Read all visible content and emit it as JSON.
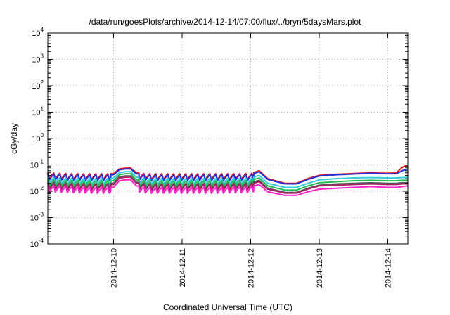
{
  "chart_data": {
    "type": "line",
    "title": "/data/run/goesPlots/archive/2014-12-14/07:00/flux/../bryn/5daysMars.plot",
    "xlabel": "Coordinated Universal Time (UTC)",
    "ylabel": "cGy/day",
    "y_scale": "log",
    "ylim": [
      0.0001,
      10000
    ],
    "y_ticks": [
      {
        "base": "10",
        "exp": "4",
        "value": 10000
      },
      {
        "base": "10",
        "exp": "3",
        "value": 1000
      },
      {
        "base": "10",
        "exp": "2",
        "value": 100
      },
      {
        "base": "10",
        "exp": "1",
        "value": 10
      },
      {
        "base": "10",
        "exp": "0",
        "value": 1
      },
      {
        "base": "10",
        "exp": "-1",
        "value": 0.1
      },
      {
        "base": "10",
        "exp": "-2",
        "value": 0.01
      },
      {
        "base": "10",
        "exp": "-3",
        "value": 0.001
      },
      {
        "base": "10",
        "exp": "-4",
        "value": 0.0001
      }
    ],
    "xlim": [
      "2014-12-09T01:00",
      "2014-12-14T07:00"
    ],
    "x_ticks": [
      {
        "label": "2014-12-10",
        "value": "2014-12-10T00:00"
      },
      {
        "label": "2014-12-11",
        "value": "2014-12-11T00:00"
      },
      {
        "label": "2014-12-12",
        "value": "2014-12-12T00:00"
      },
      {
        "label": "2014-12-13",
        "value": "2014-12-13T00:00"
      },
      {
        "label": "2014-12-14",
        "value": "2014-12-14T00:00"
      }
    ],
    "grid": true,
    "series": [
      {
        "color": "#ee1111",
        "width": 2,
        "x": [
          "2014-12-09T01:00",
          "2014-12-09T08:00",
          "2014-12-09T16:00",
          "2014-12-10T00:00",
          "2014-12-10T02:00",
          "2014-12-10T04:00",
          "2014-12-10T06:00",
          "2014-12-10T08:00",
          "2014-12-10T12:00",
          "2014-12-11T00:00",
          "2014-12-11T12:00",
          "2014-12-12T00:00",
          "2014-12-12T03:00",
          "2014-12-12T06:00",
          "2014-12-12T12:00",
          "2014-12-12T16:00",
          "2014-12-12T20:00",
          "2014-12-13T00:00",
          "2014-12-13T06:00",
          "2014-12-13T12:00",
          "2014-12-13T18:00",
          "2014-12-14T00:00",
          "2014-12-14T03:00",
          "2014-12-14T05:00",
          "2014-12-14T07:00"
        ],
        "y": [
          0.05,
          0.047,
          0.046,
          0.046,
          0.07,
          0.075,
          0.076,
          0.05,
          0.046,
          0.046,
          0.046,
          0.047,
          0.06,
          0.03,
          0.02,
          0.02,
          0.03,
          0.04,
          0.044,
          0.047,
          0.05,
          0.048,
          0.05,
          0.08,
          0.1
        ]
      },
      {
        "color": "#2233dd",
        "width": 2,
        "x": [
          "2014-12-09T01:00",
          "2014-12-09T08:00",
          "2014-12-09T16:00",
          "2014-12-10T00:00",
          "2014-12-10T02:00",
          "2014-12-10T04:00",
          "2014-12-10T06:00",
          "2014-12-10T08:00",
          "2014-12-10T12:00",
          "2014-12-11T00:00",
          "2014-12-11T12:00",
          "2014-12-12T00:00",
          "2014-12-12T03:00",
          "2014-12-12T06:00",
          "2014-12-12T12:00",
          "2014-12-12T16:00",
          "2014-12-12T20:00",
          "2014-12-13T00:00",
          "2014-12-13T06:00",
          "2014-12-13T12:00",
          "2014-12-13T18:00",
          "2014-12-14T00:00",
          "2014-12-14T03:00",
          "2014-12-14T05:00",
          "2014-12-14T07:00"
        ],
        "y": [
          0.045,
          0.043,
          0.042,
          0.042,
          0.065,
          0.07,
          0.07,
          0.046,
          0.042,
          0.042,
          0.042,
          0.043,
          0.055,
          0.028,
          0.019,
          0.019,
          0.028,
          0.038,
          0.042,
          0.045,
          0.048,
          0.046,
          0.046,
          0.06,
          0.07
        ]
      },
      {
        "color": "#33ccdd",
        "width": 2,
        "x": [
          "2014-12-09T01:00",
          "2014-12-09T08:00",
          "2014-12-09T16:00",
          "2014-12-10T00:00",
          "2014-12-10T02:00",
          "2014-12-10T04:00",
          "2014-12-10T06:00",
          "2014-12-10T08:00",
          "2014-12-10T12:00",
          "2014-12-11T00:00",
          "2014-12-11T12:00",
          "2014-12-12T00:00",
          "2014-12-12T03:00",
          "2014-12-12T06:00",
          "2014-12-12T12:00",
          "2014-12-12T16:00",
          "2014-12-12T20:00",
          "2014-12-13T00:00",
          "2014-12-13T06:00",
          "2014-12-13T12:00",
          "2014-12-13T18:00",
          "2014-12-14T00:00",
          "2014-12-14T03:00",
          "2014-12-14T05:00",
          "2014-12-14T07:00"
        ],
        "y": [
          0.034,
          0.032,
          0.031,
          0.031,
          0.05,
          0.055,
          0.055,
          0.034,
          0.031,
          0.031,
          0.031,
          0.032,
          0.04,
          0.02,
          0.014,
          0.014,
          0.02,
          0.027,
          0.03,
          0.032,
          0.033,
          0.032,
          0.032,
          0.033,
          0.034
        ]
      },
      {
        "color": "#22bb55",
        "width": 2,
        "x": [
          "2014-12-09T01:00",
          "2014-12-09T08:00",
          "2014-12-09T16:00",
          "2014-12-10T00:00",
          "2014-12-10T02:00",
          "2014-12-10T04:00",
          "2014-12-10T06:00",
          "2014-12-10T08:00",
          "2014-12-10T12:00",
          "2014-12-11T00:00",
          "2014-12-11T12:00",
          "2014-12-12T00:00",
          "2014-12-12T03:00",
          "2014-12-12T06:00",
          "2014-12-12T12:00",
          "2014-12-12T16:00",
          "2014-12-12T20:00",
          "2014-12-13T00:00",
          "2014-12-13T06:00",
          "2014-12-13T12:00",
          "2014-12-13T18:00",
          "2014-12-14T00:00",
          "2014-12-14T03:00",
          "2014-12-14T05:00",
          "2014-12-14T07:00"
        ],
        "y": [
          0.027,
          0.026,
          0.025,
          0.025,
          0.042,
          0.046,
          0.046,
          0.027,
          0.025,
          0.025,
          0.025,
          0.026,
          0.032,
          0.016,
          0.011,
          0.011,
          0.016,
          0.021,
          0.023,
          0.025,
          0.026,
          0.025,
          0.025,
          0.026,
          0.026
        ]
      },
      {
        "color": "#555555",
        "width": 2,
        "x": [
          "2014-12-09T01:00",
          "2014-12-09T08:00",
          "2014-12-09T16:00",
          "2014-12-10T00:00",
          "2014-12-10T02:00",
          "2014-12-10T04:00",
          "2014-12-10T06:00",
          "2014-12-10T08:00",
          "2014-12-10T12:00",
          "2014-12-11T00:00",
          "2014-12-11T12:00",
          "2014-12-12T00:00",
          "2014-12-12T03:00",
          "2014-12-12T06:00",
          "2014-12-12T12:00",
          "2014-12-12T16:00",
          "2014-12-12T20:00",
          "2014-12-13T00:00",
          "2014-12-13T06:00",
          "2014-12-13T12:00",
          "2014-12-13T18:00",
          "2014-12-14T00:00",
          "2014-12-14T03:00",
          "2014-12-14T05:00",
          "2014-12-14T07:00"
        ],
        "y": [
          0.022,
          0.021,
          0.02,
          0.02,
          0.035,
          0.038,
          0.038,
          0.022,
          0.02,
          0.02,
          0.02,
          0.021,
          0.026,
          0.013,
          0.009,
          0.009,
          0.013,
          0.017,
          0.019,
          0.02,
          0.021,
          0.02,
          0.02,
          0.021,
          0.021
        ]
      },
      {
        "color": "#aa2266",
        "width": 2,
        "x": [
          "2014-12-09T01:00",
          "2014-12-09T08:00",
          "2014-12-09T16:00",
          "2014-12-10T00:00",
          "2014-12-10T02:00",
          "2014-12-10T04:00",
          "2014-12-10T06:00",
          "2014-12-10T08:00",
          "2014-12-10T12:00",
          "2014-12-11T00:00",
          "2014-12-11T12:00",
          "2014-12-12T00:00",
          "2014-12-12T03:00",
          "2014-12-12T06:00",
          "2014-12-12T12:00",
          "2014-12-12T16:00",
          "2014-12-12T20:00",
          "2014-12-13T00:00",
          "2014-12-13T06:00",
          "2014-12-13T12:00",
          "2014-12-13T18:00",
          "2014-12-14T00:00",
          "2014-12-14T03:00",
          "2014-12-14T05:00",
          "2014-12-14T07:00"
        ],
        "y": [
          0.02,
          0.019,
          0.018,
          0.018,
          0.031,
          0.034,
          0.034,
          0.02,
          0.018,
          0.018,
          0.018,
          0.019,
          0.023,
          0.012,
          0.0085,
          0.0085,
          0.012,
          0.016,
          0.017,
          0.018,
          0.019,
          0.018,
          0.018,
          0.019,
          0.019
        ]
      },
      {
        "color": "#ff22cc",
        "width": 2,
        "x": [
          "2014-12-09T01:00",
          "2014-12-09T08:00",
          "2014-12-09T16:00",
          "2014-12-10T00:00",
          "2014-12-10T02:00",
          "2014-12-10T04:00",
          "2014-12-10T06:00",
          "2014-12-10T08:00",
          "2014-12-10T12:00",
          "2014-12-11T00:00",
          "2014-12-11T12:00",
          "2014-12-12T00:00",
          "2014-12-12T03:00",
          "2014-12-12T06:00",
          "2014-12-12T12:00",
          "2014-12-12T16:00",
          "2014-12-12T20:00",
          "2014-12-13T00:00",
          "2014-12-13T06:00",
          "2014-12-13T12:00",
          "2014-12-13T18:00",
          "2014-12-14T00:00",
          "2014-12-14T03:00",
          "2014-12-14T05:00",
          "2014-12-14T07:00"
        ],
        "y": [
          0.016,
          0.015,
          0.014,
          0.014,
          0.025,
          0.027,
          0.027,
          0.016,
          0.014,
          0.014,
          0.014,
          0.015,
          0.018,
          0.0095,
          0.007,
          0.007,
          0.0095,
          0.012,
          0.013,
          0.014,
          0.015,
          0.014,
          0.014,
          0.015,
          0.016
        ]
      }
    ]
  }
}
